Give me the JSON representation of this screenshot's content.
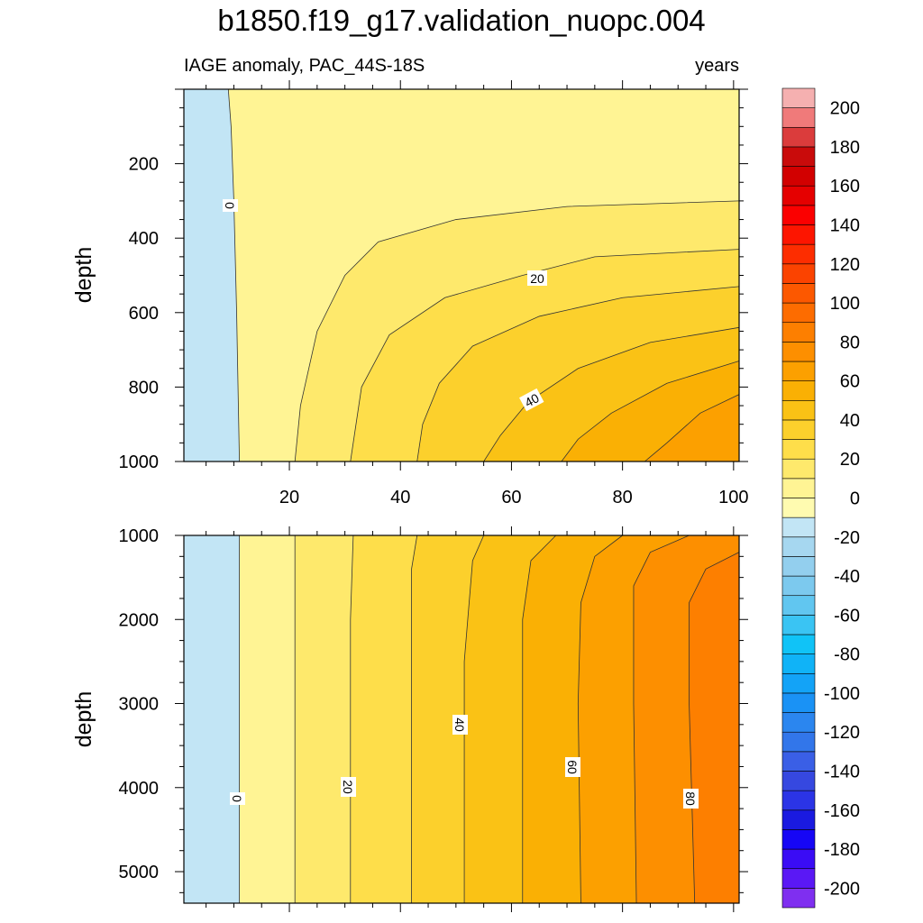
{
  "figure": {
    "title": "b1850.f19_g17.validation_nuopc.004",
    "subtitle_left": "IAGE anomaly, PAC_44S-18S",
    "subtitle_right": "years"
  },
  "chart_data": [
    {
      "type": "heatmap",
      "panel": "upper",
      "title": "",
      "xlabel": "",
      "ylabel": "depth",
      "xlim": [
        1,
        101
      ],
      "ylim": [
        0,
        1000
      ],
      "y_inverted": true,
      "xticks": [
        20,
        40,
        60,
        80,
        100
      ],
      "yticks": [
        200,
        400,
        600,
        800,
        1000
      ],
      "contour_labels": [
        "0",
        "20",
        "40"
      ],
      "contours": [
        {
          "level": 0,
          "points": [
            [
              9,
              0
            ],
            [
              9.5,
              100
            ],
            [
              10,
              300
            ],
            [
              10.5,
              600
            ],
            [
              11,
              1000
            ]
          ]
        },
        {
          "level": 10,
          "points": [
            [
              101,
              300
            ],
            [
              70,
              315
            ],
            [
              50,
              350
            ],
            [
              36,
              410
            ],
            [
              30,
              500
            ],
            [
              25,
              650
            ],
            [
              22,
              850
            ],
            [
              21,
              1000
            ]
          ]
        },
        {
          "level": 20,
          "points": [
            [
              101,
              430
            ],
            [
              75,
              450
            ],
            [
              62,
              500
            ],
            [
              48,
              560
            ],
            [
              38,
              660
            ],
            [
              33,
              800
            ],
            [
              31,
              1000
            ]
          ]
        },
        {
          "level": 30,
          "points": [
            [
              101,
              530
            ],
            [
              80,
              560
            ],
            [
              65,
              610
            ],
            [
              53,
              690
            ],
            [
              47,
              790
            ],
            [
              44,
              900
            ],
            [
              43,
              1000
            ]
          ]
        },
        {
          "level": 40,
          "points": [
            [
              101,
              640
            ],
            [
              85,
              680
            ],
            [
              72,
              750
            ],
            [
              63,
              840
            ],
            [
              58,
              930
            ],
            [
              55,
              1000
            ]
          ]
        },
        {
          "level": 50,
          "points": [
            [
              101,
              730
            ],
            [
              88,
              790
            ],
            [
              78,
              870
            ],
            [
              72,
              940
            ],
            [
              69,
              1000
            ]
          ]
        },
        {
          "level": 60,
          "points": [
            [
              101,
              820
            ],
            [
              94,
              870
            ],
            [
              88,
              950
            ],
            [
              84,
              1000
            ]
          ]
        }
      ]
    },
    {
      "type": "heatmap",
      "panel": "lower",
      "title": "",
      "xlabel": "",
      "ylabel": "depth",
      "xlim": [
        1,
        101
      ],
      "ylim": [
        1000,
        5375
      ],
      "y_inverted": true,
      "xticks": [],
      "yticks": [
        1000,
        2000,
        3000,
        4000,
        5000
      ],
      "contour_labels": [
        "0",
        "20",
        "40",
        "60",
        "80"
      ],
      "contours": [
        {
          "level": 0,
          "points": [
            [
              11,
              1000
            ],
            [
              11,
              5375
            ]
          ]
        },
        {
          "level": 10,
          "points": [
            [
              21,
              1000
            ],
            [
              21,
              5375
            ]
          ]
        },
        {
          "level": 20,
          "points": [
            [
              31.5,
              1000
            ],
            [
              31,
              2000
            ],
            [
              31,
              5375
            ]
          ]
        },
        {
          "level": 30,
          "points": [
            [
              43,
              1000
            ],
            [
              42,
              1400
            ],
            [
              42,
              5375
            ]
          ]
        },
        {
          "level": 40,
          "points": [
            [
              55,
              1000
            ],
            [
              53,
              1300
            ],
            [
              51.5,
              2500
            ],
            [
              51.5,
              5375
            ]
          ]
        },
        {
          "level": 50,
          "points": [
            [
              68,
              1000
            ],
            [
              63.5,
              1300
            ],
            [
              62,
              2000
            ],
            [
              62,
              5375
            ]
          ]
        },
        {
          "level": 60,
          "points": [
            [
              80,
              1000
            ],
            [
              75,
              1250
            ],
            [
              72.5,
              1800
            ],
            [
              72,
              3000
            ],
            [
              72.5,
              5375
            ]
          ]
        },
        {
          "level": 70,
          "points": [
            [
              92,
              1000
            ],
            [
              85,
              1200
            ],
            [
              82,
              1600
            ],
            [
              82,
              3000
            ],
            [
              82.5,
              5375
            ]
          ]
        },
        {
          "level": 80,
          "points": [
            [
              101,
              1200
            ],
            [
              95,
              1400
            ],
            [
              92,
              1800
            ],
            [
              92,
              3000
            ],
            [
              93,
              5375
            ]
          ]
        }
      ]
    }
  ],
  "colorbar": {
    "levels_low_to_high": [
      -210,
      -200,
      -190,
      -180,
      -170,
      -160,
      -150,
      -140,
      -130,
      -120,
      -110,
      -100,
      -90,
      -80,
      -70,
      -60,
      -50,
      -40,
      -30,
      -20,
      -10,
      0,
      10,
      20,
      30,
      40,
      50,
      60,
      70,
      80,
      90,
      100,
      110,
      120,
      130,
      140,
      150,
      160,
      170,
      180,
      190,
      200,
      210
    ],
    "colors_low_to_high": [
      "#7f2ff0",
      "#5a18f5",
      "#3a0cf5",
      "#1606f5",
      "#1a1ae0",
      "#2b34e6",
      "#3648e0",
      "#3a5fe6",
      "#3276ea",
      "#2b86ef",
      "#1a92f5",
      "#13a3f7",
      "#10b3f7",
      "#10c3f7",
      "#3ac4f3",
      "#61c6f0",
      "#7cc9ee",
      "#93cfee",
      "#a6d7f0",
      "#c2e5f5",
      "#fffbb0",
      "#fff494",
      "#fee96c",
      "#fede4a",
      "#fcd02c",
      "#fac215",
      "#fab004",
      "#fca000",
      "#fd8f00",
      "#fd7f00",
      "#fd6c00",
      "#fc5800",
      "#fb4300",
      "#fd2d00",
      "#fd1500",
      "#fb0000",
      "#e50000",
      "#d20000",
      "#c90b0b",
      "#db3c3c",
      "#f07a7a",
      "#f5b0b0"
    ],
    "tick_labels": [
      "-200",
      "-180",
      "-160",
      "-140",
      "-120",
      "-100",
      "-80",
      "-60",
      "-40",
      "-20",
      "0",
      "20",
      "40",
      "60",
      "80",
      "100",
      "120",
      "140",
      "160",
      "180",
      "200"
    ]
  }
}
